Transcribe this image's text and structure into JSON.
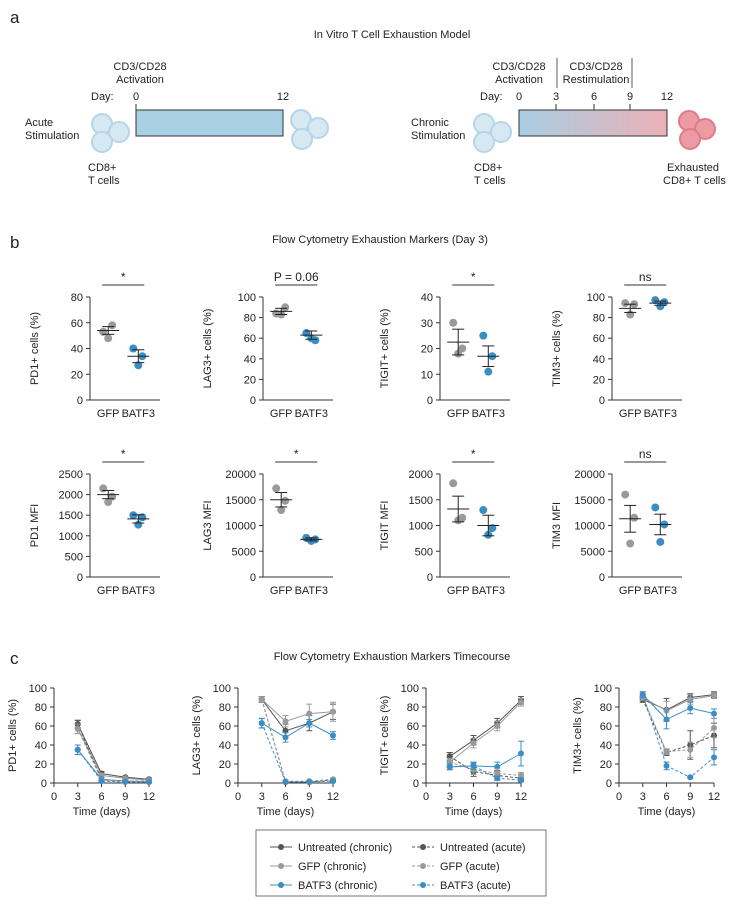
{
  "colors": {
    "untreated": "#555555",
    "gfp": "#9a9a9a",
    "batf3": "#3b8ec4",
    "cell_blue_fill": "#d6e9f3",
    "cell_blue_stroke": "#b7d5e6",
    "cell_red_fill": "#ec9aa3",
    "cell_red_stroke": "#e07c88",
    "bar_blue": "#a8cfe2",
    "bar_red": "#ebb0b8",
    "axis": "#333333"
  },
  "panel_a": {
    "label": "a",
    "title": "In Vitro T Cell Exhaustion Model",
    "acute": {
      "activation_line1": "CD3/CD28",
      "activation_line2": "Activation",
      "day_label": "Day:",
      "day_start": "0",
      "day_end": "12",
      "stimulation_line1": "Acute",
      "stimulation_line2": "Stimulation",
      "cells_line1": "CD8+",
      "cells_line2": "T cells"
    },
    "chronic": {
      "activation_line1": "CD3/CD28",
      "activation_line2": "Activation",
      "restim_line1": "CD3/CD28",
      "restim_line2": "Restimulation",
      "day_label": "Day:",
      "days": [
        "0",
        "3",
        "6",
        "9",
        "12"
      ],
      "stimulation_line1": "Chronic",
      "stimulation_line2": "Stimulation",
      "cells_line1": "CD8+",
      "cells_line2": "T cells",
      "exhausted_line1": "Exhausted",
      "exhausted_line2": "CD8+ T cells"
    }
  },
  "panel_b": {
    "label": "b",
    "title": "Flow Cytometry Exhaustion Markers (Day 3)"
  },
  "panel_c": {
    "label": "c",
    "title": "Flow Cytometry Exhaustion Markers Timecourse"
  },
  "chart_data": [
    {
      "id": "b1",
      "type": "scatter",
      "ylabel": "PD1+ cells (%)",
      "ylim": [
        0,
        80
      ],
      "yticks": [
        0,
        20,
        40,
        60,
        80
      ],
      "categories": [
        "GFP",
        "BATF3"
      ],
      "points": {
        "GFP": [
          53,
          58,
          48
        ],
        "BATF3": [
          40,
          34,
          27
        ]
      },
      "mean": {
        "GFP": 54,
        "BATF3": 34
      },
      "sem": {
        "GFP": 3,
        "BATF3": 5
      },
      "sig": "*"
    },
    {
      "id": "b2",
      "type": "scatter",
      "ylabel": "LAG3+ cells (%)",
      "ylim": [
        0,
        100
      ],
      "yticks": [
        0,
        20,
        40,
        60,
        80,
        100
      ],
      "categories": [
        "GFP",
        "BATF3"
      ],
      "points": {
        "GFP": [
          84,
          90,
          83
        ],
        "BATF3": [
          65,
          58,
          60
        ]
      },
      "mean": {
        "GFP": 86,
        "BATF3": 63
      },
      "sem": {
        "GFP": 3,
        "BATF3": 4
      },
      "sig": "P = 0.06"
    },
    {
      "id": "b3",
      "type": "scatter",
      "ylabel": "TIGIT+ cells (%)",
      "ylim": [
        0,
        40
      ],
      "yticks": [
        0,
        10,
        20,
        30,
        40
      ],
      "categories": [
        "GFP",
        "BATF3"
      ],
      "points": {
        "GFP": [
          30,
          20,
          18
        ],
        "BATF3": [
          25,
          17,
          11
        ]
      },
      "mean": {
        "GFP": 22.5,
        "BATF3": 17
      },
      "sem": {
        "GFP": 5,
        "BATF3": 4
      },
      "sig": "*"
    },
    {
      "id": "b4",
      "type": "scatter",
      "ylabel": "TIM3+ cells (%)",
      "ylim": [
        0,
        100
      ],
      "yticks": [
        0,
        20,
        40,
        60,
        80,
        100
      ],
      "categories": [
        "GFP",
        "BATF3"
      ],
      "points": {
        "GFP": [
          94,
          93,
          83
        ],
        "BATF3": [
          97,
          95,
          91
        ]
      },
      "mean": {
        "GFP": 89,
        "BATF3": 94
      },
      "sem": {
        "GFP": 4,
        "BATF3": 2
      },
      "sig": "ns"
    },
    {
      "id": "b5",
      "type": "scatter",
      "ylabel": "PD1 MFI",
      "ylim": [
        0,
        2500
      ],
      "yticks": [
        0,
        500,
        1000,
        1500,
        2000,
        2500
      ],
      "categories": [
        "GFP",
        "BATF3"
      ],
      "points": {
        "GFP": [
          2150,
          1950,
          1820
        ],
        "BATF3": [
          1500,
          1450,
          1270
        ]
      },
      "mean": {
        "GFP": 2000,
        "BATF3": 1410
      },
      "sem": {
        "GFP": 100,
        "BATF3": 100
      },
      "sig": "*"
    },
    {
      "id": "b6",
      "type": "scatter",
      "ylabel": "LAG3 MFI",
      "ylim": [
        0,
        20000
      ],
      "yticks": [
        0,
        5000,
        10000,
        15000,
        20000
      ],
      "categories": [
        "GFP",
        "BATF3"
      ],
      "points": {
        "GFP": [
          17200,
          14800,
          13000
        ],
        "BATF3": [
          7600,
          7300,
          7000
        ]
      },
      "mean": {
        "GFP": 15000,
        "BATF3": 7300
      },
      "sem": {
        "GFP": 1400,
        "BATF3": 300
      },
      "sig": "*"
    },
    {
      "id": "b7",
      "type": "scatter",
      "ylabel": "TIGIT MFI",
      "ylim": [
        0,
        2000
      ],
      "yticks": [
        0,
        500,
        1000,
        1500,
        2000
      ],
      "categories": [
        "GFP",
        "BATF3"
      ],
      "points": {
        "GFP": [
          1820,
          1150,
          1100
        ],
        "BATF3": [
          1300,
          950,
          820
        ]
      },
      "mean": {
        "GFP": 1320,
        "BATF3": 1000
      },
      "sem": {
        "GFP": 250,
        "BATF3": 200
      },
      "sig": "*"
    },
    {
      "id": "b8",
      "type": "scatter",
      "ylabel": "TIM3 MFI",
      "ylim": [
        0,
        20000
      ],
      "yticks": [
        0,
        5000,
        10000,
        15000,
        20000
      ],
      "categories": [
        "GFP",
        "BATF3"
      ],
      "points": {
        "GFP": [
          16000,
          11500,
          6500
        ],
        "BATF3": [
          13500,
          10200,
          6800
        ]
      },
      "mean": {
        "GFP": 11300,
        "BATF3": 10200
      },
      "sem": {
        "GFP": 2600,
        "BATF3": 2000
      },
      "sig": "ns"
    },
    {
      "id": "c1",
      "type": "line",
      "ylabel": "PD1+ cells (%)",
      "xlabel": "Time (days)",
      "x": [
        3,
        6,
        9,
        12
      ],
      "xlim": [
        0,
        12
      ],
      "xticks": [
        0,
        3,
        6,
        9,
        12
      ],
      "ylim": [
        0,
        100
      ],
      "yticks": [
        0,
        20,
        40,
        60,
        80,
        100
      ],
      "series": [
        {
          "name": "Untreated (chronic)",
          "values": [
            62,
            10,
            6,
            4
          ],
          "err": [
            4,
            2,
            1,
            1
          ]
        },
        {
          "name": "GFP (chronic)",
          "values": [
            57,
            8,
            5,
            3
          ],
          "err": [
            5,
            2,
            1,
            1
          ]
        },
        {
          "name": "BATF3 (chronic)",
          "values": [
            35,
            4,
            2,
            1
          ],
          "err": [
            5,
            2,
            1,
            1
          ]
        },
        {
          "name": "Untreated (acute)",
          "values": [
            62,
            3,
            2,
            2
          ],
          "err": [
            4,
            1,
            1,
            1
          ]
        },
        {
          "name": "GFP (acute)",
          "values": [
            57,
            3,
            2,
            2
          ],
          "err": [
            5,
            1,
            1,
            1
          ]
        },
        {
          "name": "BATF3 (acute)",
          "values": [
            35,
            2,
            1,
            1
          ],
          "err": [
            5,
            1,
            1,
            1
          ]
        }
      ]
    },
    {
      "id": "c2",
      "type": "line",
      "ylabel": "LAG3+ cells (%)",
      "xlabel": "Time (days)",
      "x": [
        3,
        6,
        9,
        12
      ],
      "xlim": [
        0,
        12
      ],
      "xticks": [
        0,
        3,
        6,
        9,
        12
      ],
      "ylim": [
        0,
        100
      ],
      "yticks": [
        0,
        20,
        40,
        60,
        80,
        100
      ],
      "series": [
        {
          "name": "Untreated (chronic)",
          "values": [
            88,
            55,
            63,
            75
          ],
          "err": [
            3,
            7,
            8,
            8
          ]
        },
        {
          "name": "GFP (chronic)",
          "values": [
            88,
            65,
            73,
            75
          ],
          "err": [
            3,
            6,
            10,
            10
          ]
        },
        {
          "name": "BATF3 (chronic)",
          "values": [
            63,
            48,
            63,
            50
          ],
          "err": [
            5,
            5,
            4,
            4
          ]
        },
        {
          "name": "Untreated (acute)",
          "values": [
            88,
            1,
            1,
            3
          ],
          "err": [
            3,
            1,
            1,
            1
          ]
        },
        {
          "name": "GFP (acute)",
          "values": [
            88,
            2,
            2,
            4
          ],
          "err": [
            3,
            1,
            1,
            1
          ]
        },
        {
          "name": "BATF3 (acute)",
          "values": [
            63,
            1,
            1,
            2
          ],
          "err": [
            5,
            1,
            1,
            1
          ]
        }
      ]
    },
    {
      "id": "c3",
      "type": "line",
      "ylabel": "TIGIT+ cells (%)",
      "xlabel": "Time (days)",
      "x": [
        3,
        6,
        9,
        12
      ],
      "xlim": [
        0,
        12
      ],
      "xticks": [
        0,
        3,
        6,
        9,
        12
      ],
      "ylim": [
        0,
        100
      ],
      "yticks": [
        0,
        20,
        40,
        60,
        80,
        100
      ],
      "series": [
        {
          "name": "Untreated (chronic)",
          "values": [
            28,
            45,
            63,
            87
          ],
          "err": [
            4,
            5,
            5,
            4
          ]
        },
        {
          "name": "GFP (chronic)",
          "values": [
            22,
            42,
            60,
            85
          ],
          "err": [
            4,
            5,
            5,
            4
          ]
        },
        {
          "name": "BATF3 (chronic)",
          "values": [
            17,
            18,
            17,
            31
          ],
          "err": [
            3,
            3,
            5,
            13
          ]
        },
        {
          "name": "Untreated (acute)",
          "values": [
            28,
            12,
            8,
            5
          ],
          "err": [
            4,
            5,
            5,
            3
          ]
        },
        {
          "name": "GFP (acute)",
          "values": [
            22,
            14,
            10,
            8
          ],
          "err": [
            4,
            5,
            5,
            3
          ]
        },
        {
          "name": "BATF3 (acute)",
          "values": [
            17,
            18,
            5,
            3
          ],
          "err": [
            3,
            4,
            2,
            2
          ]
        }
      ]
    },
    {
      "id": "c4",
      "type": "line",
      "ylabel": "TIM3+ cells (%)",
      "xlabel": "Time (days)",
      "x": [
        3,
        6,
        9,
        12
      ],
      "xlim": [
        0,
        12
      ],
      "xticks": [
        0,
        3,
        6,
        9,
        12
      ],
      "ylim": [
        0,
        100
      ],
      "yticks": [
        0,
        20,
        40,
        60,
        80,
        100
      ],
      "series": [
        {
          "name": "Untreated (chronic)",
          "values": [
            88,
            77,
            90,
            93
          ],
          "err": [
            3,
            12,
            4,
            3
          ]
        },
        {
          "name": "GFP (chronic)",
          "values": [
            90,
            76,
            88,
            92
          ],
          "err": [
            3,
            10,
            5,
            3
          ]
        },
        {
          "name": "BATF3 (chronic)",
          "values": [
            93,
            67,
            79,
            73
          ],
          "err": [
            3,
            10,
            6,
            5
          ]
        },
        {
          "name": "Untreated (acute)",
          "values": [
            88,
            32,
            40,
            50
          ],
          "err": [
            3,
            3,
            15,
            13
          ]
        },
        {
          "name": "GFP (acute)",
          "values": [
            90,
            33,
            35,
            58
          ],
          "err": [
            3,
            3,
            8,
            10
          ]
        },
        {
          "name": "BATF3 (acute)",
          "values": [
            93,
            18,
            6,
            27
          ],
          "err": [
            3,
            4,
            1,
            8
          ]
        }
      ]
    }
  ],
  "legend": {
    "items": [
      {
        "label": "Untreated (chronic)",
        "key": "untreated",
        "dashed": false
      },
      {
        "label": "Untreated (acute)",
        "key": "untreated",
        "dashed": true
      },
      {
        "label": "GFP (chronic)",
        "key": "gfp",
        "dashed": false
      },
      {
        "label": "GFP (acute)",
        "key": "gfp",
        "dashed": true
      },
      {
        "label": "BATF3 (chronic)",
        "key": "batf3",
        "dashed": false
      },
      {
        "label": "BATF3 (acute)",
        "key": "batf3",
        "dashed": true
      }
    ]
  }
}
